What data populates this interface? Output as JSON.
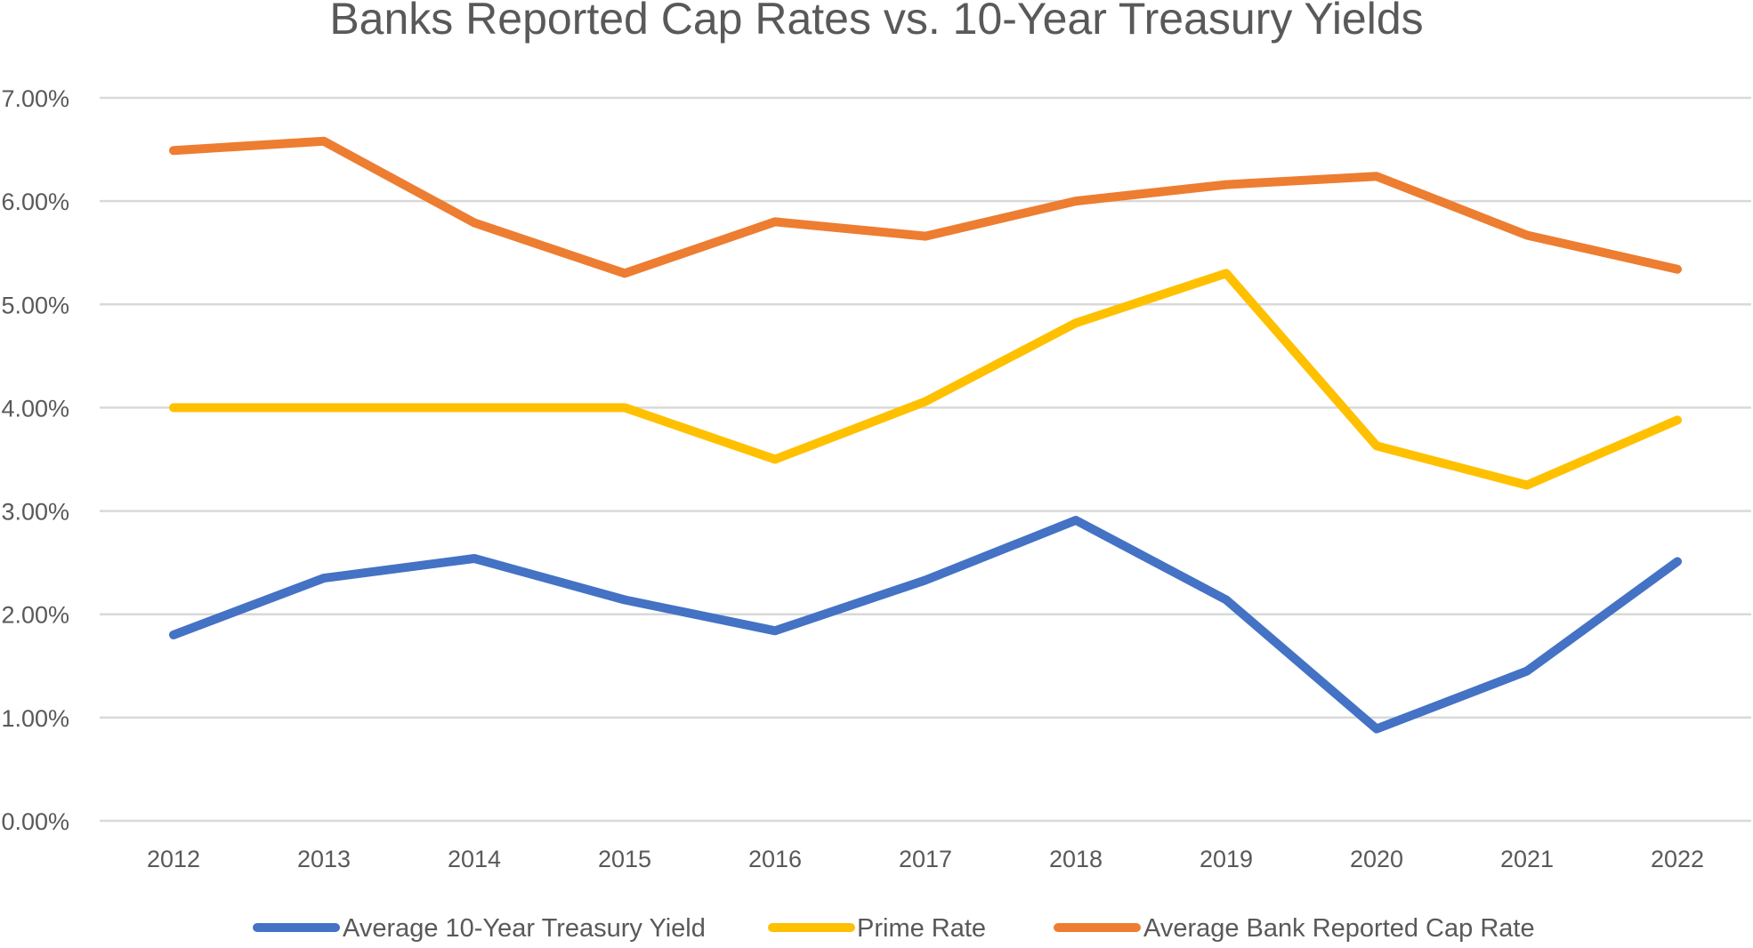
{
  "chart_data": {
    "type": "line",
    "title": "Banks Reported Cap Rates vs. 10-Year Treasury Yields",
    "xlabel": "",
    "ylabel": "",
    "categories": [
      "2012",
      "2013",
      "2014",
      "2015",
      "2016",
      "2017",
      "2018",
      "2019",
      "2020",
      "2021",
      "2022"
    ],
    "ylim": [
      0,
      0.07
    ],
    "y_ticks": [
      0,
      0.01,
      0.02,
      0.03,
      0.04,
      0.05,
      0.06,
      0.07
    ],
    "y_tick_labels": [
      "0.00%",
      "1.00%",
      "2.00%",
      "3.00%",
      "4.00%",
      "5.00%",
      "6.00%",
      "7.00%"
    ],
    "grid": true,
    "legend_position": "bottom",
    "series": [
      {
        "name": "Average 10-Year Treasury Yield",
        "color": "#4472c4",
        "values": [
          0.018,
          0.0235,
          0.0254,
          0.0214,
          0.0184,
          0.0233,
          0.0291,
          0.0214,
          0.0089,
          0.0145,
          0.0251
        ]
      },
      {
        "name": "Prime Rate",
        "color": "#ffc000",
        "values": [
          0.04,
          0.04,
          0.04,
          0.04,
          0.035,
          0.0406,
          0.0482,
          0.053,
          0.0363,
          0.0325,
          0.0388
        ]
      },
      {
        "name": "Average Bank Reported Cap Rate",
        "color": "#ed7d31",
        "values": [
          0.0649,
          0.0658,
          0.0579,
          0.053,
          0.058,
          0.0566,
          0.06,
          0.0616,
          0.0624,
          0.0567,
          0.0534
        ]
      }
    ]
  }
}
